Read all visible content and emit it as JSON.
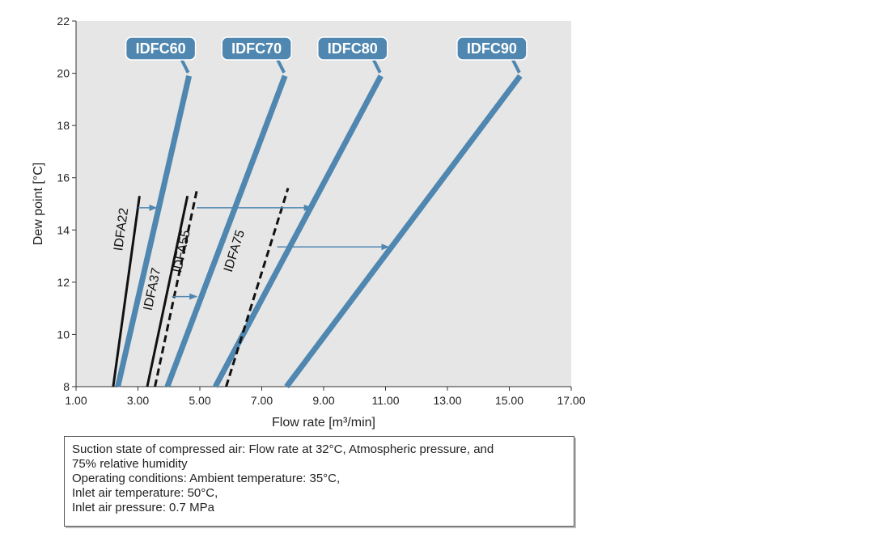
{
  "chart_data": {
    "type": "line",
    "xlabel": "Flow rate [m³/min]",
    "ylabel": "Dew point [°C]",
    "xlim": [
      1.0,
      17.0
    ],
    "ylim": [
      8,
      22
    ],
    "x_ticks": [
      "1.00",
      "3.00",
      "5.00",
      "7.00",
      "9.00",
      "11.00",
      "13.00",
      "15.00",
      "17.00"
    ],
    "y_ticks": [
      "8",
      "10",
      "12",
      "14",
      "16",
      "18",
      "20",
      "22"
    ],
    "grid": false,
    "plot_background": "#e6e6e6",
    "series": [
      {
        "name": "IDFC60",
        "style": "thick-blue",
        "color": "#4f87b0",
        "points": [
          [
            2.35,
            8.0
          ],
          [
            4.65,
            19.9
          ]
        ]
      },
      {
        "name": "IDFC70",
        "style": "thick-blue",
        "color": "#4f87b0",
        "points": [
          [
            3.95,
            8.0
          ],
          [
            7.75,
            19.9
          ]
        ]
      },
      {
        "name": "IDFC80",
        "style": "thick-blue",
        "color": "#4f87b0",
        "points": [
          [
            5.5,
            8.0
          ],
          [
            10.85,
            19.9
          ]
        ]
      },
      {
        "name": "IDFC90",
        "style": "thick-blue",
        "color": "#4f87b0",
        "points": [
          [
            7.8,
            8.0
          ],
          [
            15.35,
            19.9
          ]
        ]
      },
      {
        "name": "IDFA22",
        "style": "solid-black",
        "color": "#111111",
        "points": [
          [
            2.2,
            8.0
          ],
          [
            3.05,
            15.3
          ]
        ]
      },
      {
        "name": "IDFA37",
        "style": "solid-black",
        "color": "#111111",
        "points": [
          [
            3.3,
            8.0
          ],
          [
            4.6,
            15.3
          ]
        ]
      },
      {
        "name": "IDFA55",
        "style": "dashed-black",
        "color": "#111111",
        "points": [
          [
            3.55,
            8.0
          ],
          [
            4.9,
            15.5
          ]
        ]
      },
      {
        "name": "IDFA75",
        "style": "dashed-black",
        "color": "#111111",
        "points": [
          [
            5.85,
            8.0
          ],
          [
            7.85,
            15.6
          ]
        ]
      }
    ],
    "arrows": [
      {
        "from": [
          3.0,
          14.85
        ],
        "to": [
          3.6,
          14.85
        ]
      },
      {
        "from": [
          4.9,
          14.85
        ],
        "to": [
          8.6,
          14.85
        ]
      },
      {
        "from": [
          4.1,
          11.45
        ],
        "to": [
          4.9,
          11.45
        ]
      },
      {
        "from": [
          7.5,
          13.35
        ],
        "to": [
          11.1,
          13.35
        ]
      }
    ],
    "arrow_color": "#4f87b0"
  },
  "notes": {
    "line1": "Suction state of compressed air: Flow rate at 32°C, Atmospheric pressure, and",
    "line2": "75% relative humidity",
    "line3": "Operating conditions: Ambient temperature: 35°C,",
    "line4": "Inlet air temperature: 50°C,",
    "line5": "Inlet air pressure: 0.7 MPa"
  }
}
